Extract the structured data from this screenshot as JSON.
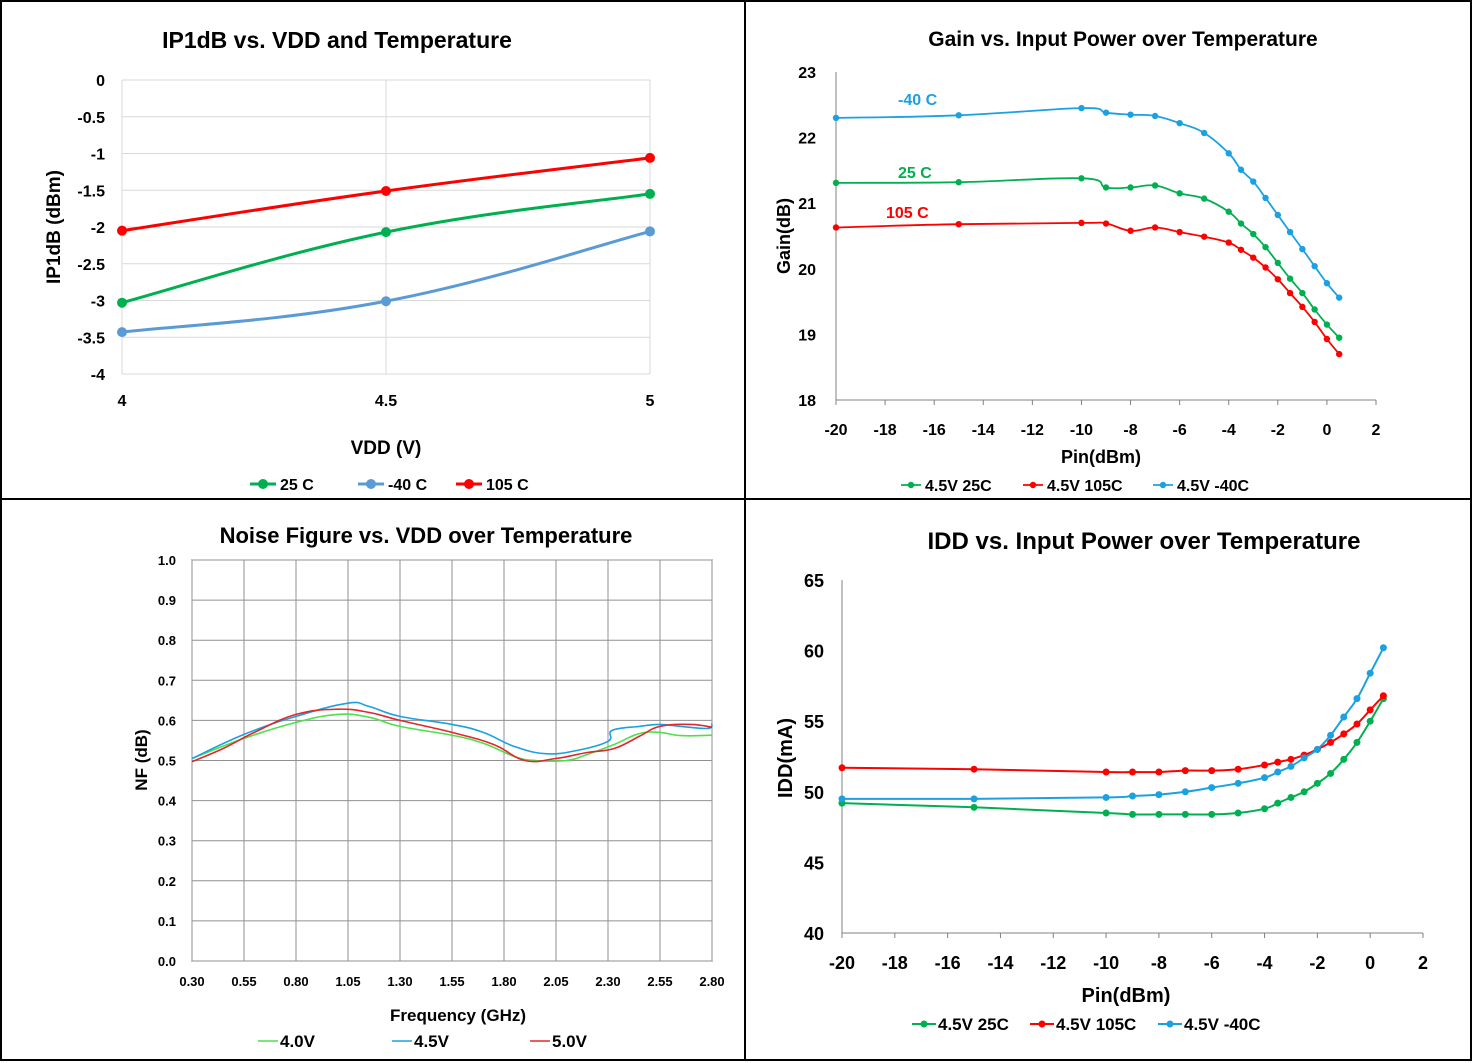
{
  "chart_data": [
    {
      "type": "line",
      "title": "IP1dB vs. VDD and Temperature",
      "xlabel": "VDD (V)",
      "ylabel": "IP1dB (dBm)",
      "x": [
        4,
        4.5,
        5
      ],
      "x_ticks": [
        "4",
        "4.5",
        "5"
      ],
      "ylim": [
        -4,
        0
      ],
      "y_ticks": [
        "0",
        "-0.5",
        "-1",
        "-1.5",
        "-2",
        "-2.5",
        "-3",
        "-3.5",
        "-4"
      ],
      "grid": true,
      "legend_position": "bottom",
      "series": [
        {
          "name": "25 C",
          "color": "#00b050",
          "values": [
            -3.03,
            -2.07,
            -1.55
          ]
        },
        {
          "name": "-40 C",
          "color": "#5b9bd5",
          "values": [
            -3.43,
            -3.01,
            -2.06
          ]
        },
        {
          "name": "105 C",
          "color": "#ff0000",
          "values": [
            -2.05,
            -1.51,
            -1.06
          ]
        }
      ]
    },
    {
      "type": "line",
      "title": "Gain vs. Input Power over Temperature",
      "xlabel": "Pin(dBm)",
      "ylabel": "Gain(dB)",
      "xlim": [
        -20,
        2
      ],
      "x_ticks": [
        "-20",
        "-18",
        "-16",
        "-14",
        "-12",
        "-10",
        "-8",
        "-6",
        "-4",
        "-2",
        "0",
        "2"
      ],
      "ylim": [
        18,
        23
      ],
      "y_ticks": [
        "18",
        "19",
        "20",
        "21",
        "22",
        "23"
      ],
      "grid": false,
      "legend_position": "bottom",
      "annotations": [
        {
          "text": "-40 C",
          "color": "#1ba1e2"
        },
        {
          "text": "25 C",
          "color": "#00b050"
        },
        {
          "text": "105 C",
          "color": "#ff0000"
        }
      ],
      "series": [
        {
          "name": "4.5V 25C",
          "color": "#00b050",
          "x": [
            -20,
            -15,
            -10,
            -9,
            -8,
            -7,
            -6,
            -5,
            -4,
            -3.5,
            -3,
            -2.5,
            -2,
            -1.5,
            -1,
            -0.5,
            0,
            0.5
          ],
          "y": [
            21.31,
            21.32,
            21.38,
            21.24,
            21.24,
            21.27,
            21.15,
            21.07,
            20.87,
            20.69,
            20.53,
            20.33,
            20.09,
            19.85,
            19.63,
            19.38,
            19.15,
            18.95
          ]
        },
        {
          "name": "4.5V 105C",
          "color": "#ff0000",
          "x": [
            -20,
            -15,
            -10,
            -9,
            -8,
            -7,
            -6,
            -5,
            -4,
            -3.5,
            -3,
            -2.5,
            -2,
            -1.5,
            -1,
            -0.5,
            0,
            0.5
          ],
          "y": [
            20.63,
            20.68,
            20.7,
            20.69,
            20.58,
            20.63,
            20.56,
            20.49,
            20.4,
            20.29,
            20.17,
            20.02,
            19.84,
            19.63,
            19.42,
            19.19,
            18.93,
            18.7
          ]
        },
        {
          "name": "4.5V -40C",
          "color": "#1ba1e2",
          "x": [
            -20,
            -15,
            -10,
            -9,
            -8,
            -7,
            -6,
            -5,
            -4,
            -3.5,
            -3,
            -2.5,
            -2,
            -1.5,
            -1,
            -0.5,
            0,
            0.5
          ],
          "y": [
            22.3,
            22.34,
            22.45,
            22.38,
            22.35,
            22.33,
            22.22,
            22.07,
            21.76,
            21.51,
            21.33,
            21.08,
            20.82,
            20.56,
            20.3,
            20.04,
            19.78,
            19.56
          ]
        }
      ]
    },
    {
      "type": "line",
      "title": "Noise Figure vs. VDD over Temperature",
      "xlabel": "Frequency (GHz)",
      "ylabel": "NF (dB)",
      "xlim": [
        0.3,
        2.8
      ],
      "x_ticks": [
        "0.30",
        "0.55",
        "0.80",
        "1.05",
        "1.30",
        "1.55",
        "1.80",
        "2.05",
        "2.30",
        "2.55",
        "2.80"
      ],
      "ylim": [
        0.0,
        1.0
      ],
      "y_ticks": [
        "0.0",
        "0.1",
        "0.2",
        "0.3",
        "0.4",
        "0.5",
        "0.6",
        "0.7",
        "0.8",
        "0.9",
        "1.0"
      ],
      "grid": true,
      "legend_position": "bottom",
      "series": [
        {
          "name": "4.0V",
          "color": "#4be14b",
          "x": [
            0.3,
            0.55,
            0.8,
            1.0,
            1.15,
            1.3,
            1.55,
            1.7,
            1.85,
            1.95,
            2.1,
            2.2,
            2.33,
            2.45,
            2.55,
            2.65,
            2.8
          ],
          "y": [
            0.505,
            0.555,
            0.595,
            0.615,
            0.608,
            0.585,
            0.563,
            0.543,
            0.51,
            0.5,
            0.5,
            0.515,
            0.54,
            0.567,
            0.57,
            0.562,
            0.563
          ]
        },
        {
          "name": "4.5V",
          "color": "#1ba1e2",
          "x": [
            0.3,
            0.55,
            0.8,
            1.05,
            1.15,
            1.3,
            1.55,
            1.7,
            1.85,
            2.0,
            2.15,
            2.3,
            2.32,
            2.45,
            2.55,
            2.65,
            2.78,
            2.8
          ],
          "y": [
            0.505,
            0.565,
            0.61,
            0.643,
            0.635,
            0.61,
            0.59,
            0.57,
            0.535,
            0.517,
            0.525,
            0.548,
            0.575,
            0.585,
            0.59,
            0.585,
            0.58,
            0.592
          ]
        },
        {
          "name": "5.0V",
          "color": "#e0282d",
          "x": [
            0.3,
            0.45,
            0.6,
            0.8,
            1.0,
            1.15,
            1.3,
            1.55,
            1.75,
            1.9,
            2.05,
            2.2,
            2.33,
            2.45,
            2.55,
            2.7,
            2.8
          ],
          "y": [
            0.497,
            0.53,
            0.57,
            0.615,
            0.628,
            0.62,
            0.6,
            0.57,
            0.54,
            0.5,
            0.505,
            0.52,
            0.53,
            0.56,
            0.585,
            0.59,
            0.583
          ]
        }
      ]
    },
    {
      "type": "line",
      "title": "IDD vs. Input Power over Temperature",
      "xlabel": "Pin(dBm)",
      "ylabel": "IDD(mA)",
      "xlim": [
        -20,
        2
      ],
      "x_ticks": [
        "-20",
        "-18",
        "-16",
        "-14",
        "-12",
        "-10",
        "-8",
        "-6",
        "-4",
        "-2",
        "0",
        "2"
      ],
      "ylim": [
        40,
        65
      ],
      "y_ticks": [
        "40",
        "45",
        "50",
        "55",
        "60",
        "65"
      ],
      "grid": false,
      "legend_position": "bottom",
      "series": [
        {
          "name": "4.5V 25C",
          "color": "#00b050",
          "x": [
            -20,
            -15,
            -10,
            -9,
            -8,
            -7,
            -6,
            -5,
            -4,
            -3.5,
            -3,
            -2.5,
            -2,
            -1.5,
            -1,
            -0.5,
            0,
            0.5
          ],
          "y": [
            49.2,
            48.9,
            48.5,
            48.4,
            48.4,
            48.4,
            48.4,
            48.5,
            48.8,
            49.2,
            49.6,
            50.0,
            50.6,
            51.3,
            52.3,
            53.5,
            55.0,
            56.6
          ]
        },
        {
          "name": "4.5V 105C",
          "color": "#ff0000",
          "x": [
            -20,
            -15,
            -10,
            -9,
            -8,
            -7,
            -6,
            -5,
            -4,
            -3.5,
            -3,
            -2.5,
            -2,
            -1.5,
            -1,
            -0.5,
            0,
            0.5
          ],
          "y": [
            51.7,
            51.6,
            51.4,
            51.4,
            51.4,
            51.5,
            51.5,
            51.6,
            51.9,
            52.1,
            52.3,
            52.6,
            53.0,
            53.5,
            54.1,
            54.8,
            55.8,
            56.8
          ]
        },
        {
          "name": "4.5V -40C",
          "color": "#1ba1e2",
          "x": [
            -20,
            -15,
            -10,
            -9,
            -8,
            -7,
            -6,
            -5,
            -4,
            -3.5,
            -3,
            -2.5,
            -2,
            -1.5,
            -1,
            -0.5,
            0,
            0.5
          ],
          "y": [
            49.5,
            49.5,
            49.6,
            49.7,
            49.8,
            50.0,
            50.3,
            50.6,
            51.0,
            51.4,
            51.8,
            52.4,
            53.0,
            54.0,
            55.3,
            56.6,
            58.4,
            60.2
          ]
        }
      ]
    }
  ]
}
